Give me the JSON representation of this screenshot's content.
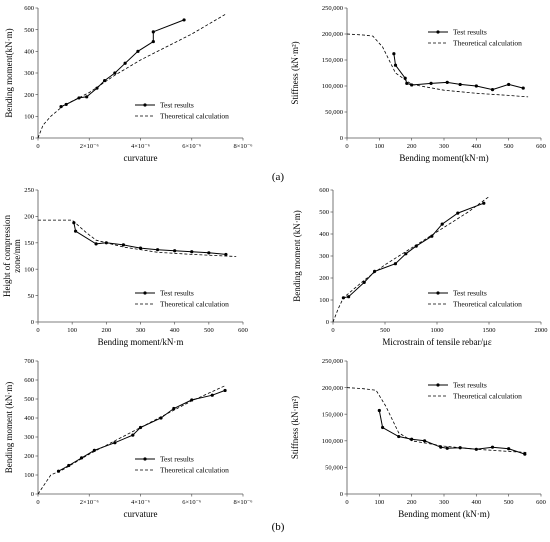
{
  "figure": {
    "caption_a": "(a)",
    "caption_b": "(b)"
  },
  "chart_data": [
    {
      "type": "line",
      "xlabel": "curvature",
      "ylabel": "Bending moment(kN·m)",
      "xlim": [
        0,
        8e-06
      ],
      "ylim": [
        0,
        600
      ],
      "xticks": [
        0,
        2e-06,
        4e-06,
        6e-06,
        8e-06
      ],
      "xtick_labels": [
        "0",
        "2×10⁻⁶",
        "4×10⁻⁶",
        "6×10⁻⁶",
        "8×10⁻⁶"
      ],
      "yticks": [
        0,
        100,
        200,
        300,
        400,
        500,
        600
      ],
      "ytick_labels": [
        "0",
        "100",
        "200",
        "300",
        "400",
        "500",
        "600"
      ],
      "grid": false,
      "legend": "lower-right",
      "series": [
        {
          "name": "Test results",
          "style": "solid-marker",
          "points": [
            [
              9e-07,
              145
            ],
            [
              1.1e-06,
              155
            ],
            [
              1.6e-06,
              185
            ],
            [
              1.9e-06,
              190
            ],
            [
              2.3e-06,
              230
            ],
            [
              2.6e-06,
              265
            ],
            [
              3e-06,
              300
            ],
            [
              3.4e-06,
              345
            ],
            [
              3.9e-06,
              400
            ],
            [
              4.5e-06,
              445
            ],
            [
              4.5e-06,
              490
            ],
            [
              5.7e-06,
              545
            ]
          ]
        },
        {
          "name": "Theoretical calculation",
          "style": "dashed",
          "points": [
            [
              0,
              0
            ],
            [
              2e-07,
              60
            ],
            [
              5e-07,
              100
            ],
            [
              1e-06,
              150
            ],
            [
              2e-06,
              210
            ],
            [
              3e-06,
              290
            ],
            [
              4e-06,
              360
            ],
            [
              5e-06,
              420
            ],
            [
              6e-06,
              480
            ],
            [
              7.3e-06,
              570
            ]
          ]
        }
      ]
    },
    {
      "type": "line",
      "xlabel": "Bending moment(kN·m)",
      "ylabel": "Stiffness (kN·m²)",
      "xlim": [
        0,
        600
      ],
      "ylim": [
        0,
        250000
      ],
      "xticks": [
        0,
        100,
        200,
        300,
        400,
        500,
        600
      ],
      "xtick_labels": [
        "0",
        "100",
        "200",
        "300",
        "400",
        "500",
        "600"
      ],
      "yticks": [
        0,
        50000,
        100000,
        150000,
        200000,
        250000
      ],
      "ytick_labels": [
        "0",
        "50,000",
        "100,000",
        "150,000",
        "200,000",
        "250,000"
      ],
      "grid": false,
      "legend": "upper-right",
      "series": [
        {
          "name": "Test results",
          "style": "solid-marker",
          "points": [
            [
              145,
              162000
            ],
            [
              150,
              140000
            ],
            [
              180,
              115000
            ],
            [
              185,
              105000
            ],
            [
              200,
              102000
            ],
            [
              260,
              105000
            ],
            [
              310,
              107000
            ],
            [
              350,
              103000
            ],
            [
              400,
              100000
            ],
            [
              450,
              93000
            ],
            [
              500,
              103000
            ],
            [
              545,
              96000
            ]
          ]
        },
        {
          "name": "Theoretical calculation",
          "style": "dashed",
          "points": [
            [
              0,
              200000
            ],
            [
              50,
              198000
            ],
            [
              80,
              196000
            ],
            [
              110,
              175000
            ],
            [
              150,
              125000
            ],
            [
              200,
              103000
            ],
            [
              300,
              92000
            ],
            [
              400,
              86000
            ],
            [
              500,
              82000
            ],
            [
              560,
              79000
            ]
          ]
        }
      ]
    },
    {
      "type": "line",
      "xlabel": "Bending moment/kN·m",
      "ylabel": "Height of compression zone/mm",
      "ylabel_lines": [
        "Height of compression",
        "zone/mm"
      ],
      "xlim": [
        0,
        600
      ],
      "ylim": [
        0,
        250
      ],
      "xticks": [
        0,
        100,
        200,
        300,
        400,
        500,
        600
      ],
      "xtick_labels": [
        "0",
        "100",
        "200",
        "300",
        "400",
        "500",
        "600"
      ],
      "yticks": [
        0,
        50,
        100,
        150,
        200,
        250
      ],
      "ytick_labels": [
        "0",
        "50",
        "100",
        "150",
        "200",
        "250"
      ],
      "grid": false,
      "legend": "lower-right",
      "series": [
        {
          "name": "Test results",
          "style": "solid-marker",
          "points": [
            [
              105,
              188
            ],
            [
              110,
              172
            ],
            [
              170,
              148
            ],
            [
              200,
              150
            ],
            [
              250,
              146
            ],
            [
              300,
              140
            ],
            [
              350,
              137
            ],
            [
              400,
              135
            ],
            [
              450,
              133
            ],
            [
              500,
              131
            ],
            [
              550,
              128
            ]
          ]
        },
        {
          "name": "Theoretical calculation",
          "style": "dashed",
          "points": [
            [
              0,
              193
            ],
            [
              100,
              193
            ],
            [
              140,
              170
            ],
            [
              170,
              155
            ],
            [
              250,
              142
            ],
            [
              350,
              132
            ],
            [
              450,
              128
            ],
            [
              580,
              124
            ]
          ]
        }
      ]
    },
    {
      "type": "line",
      "xlabel": "Microstrain of tensile rebar/με",
      "ylabel": "Bending moment (kN·m)",
      "xlim": [
        0,
        2000
      ],
      "ylim": [
        0,
        600
      ],
      "xticks": [
        0,
        500,
        1000,
        1500,
        2000
      ],
      "xtick_labels": [
        "0",
        "500",
        "1000",
        "1500",
        "2000"
      ],
      "yticks": [
        0,
        100,
        200,
        300,
        400,
        500,
        600
      ],
      "ytick_labels": [
        "0",
        "100",
        "200",
        "300",
        "400",
        "500",
        "600"
      ],
      "grid": false,
      "legend": "lower-right",
      "series": [
        {
          "name": "Test results",
          "style": "solid-marker",
          "points": [
            [
              100,
              110
            ],
            [
              150,
              115
            ],
            [
              300,
              180
            ],
            [
              400,
              230
            ],
            [
              600,
              265
            ],
            [
              700,
              310
            ],
            [
              800,
              345
            ],
            [
              950,
              390
            ],
            [
              1050,
              445
            ],
            [
              1200,
              495
            ],
            [
              1450,
              540
            ]
          ]
        },
        {
          "name": "Theoretical calculation",
          "style": "dashed",
          "points": [
            [
              0,
              0
            ],
            [
              50,
              60
            ],
            [
              100,
              110
            ],
            [
              300,
              190
            ],
            [
              500,
              260
            ],
            [
              700,
              320
            ],
            [
              900,
              380
            ],
            [
              1100,
              440
            ],
            [
              1300,
              500
            ],
            [
              1500,
              570
            ]
          ]
        }
      ]
    },
    {
      "type": "line",
      "xlabel": "curvature",
      "ylabel": "Bending moment (kN·m)",
      "xlim": [
        0,
        8e-06
      ],
      "ylim": [
        0,
        700
      ],
      "xticks": [
        0,
        2e-06,
        4e-06,
        6e-06,
        8e-06
      ],
      "xtick_labels": [
        "0",
        "2×10⁻⁶",
        "4×10⁻⁶",
        "6×10⁻⁶",
        "8×10⁻⁶"
      ],
      "yticks": [
        0,
        100,
        200,
        300,
        400,
        500,
        600,
        700
      ],
      "ytick_labels": [
        "0",
        "100",
        "200",
        "300",
        "400",
        "500",
        "600",
        "700"
      ],
      "grid": false,
      "legend": "lower-right",
      "series": [
        {
          "name": "Test results",
          "style": "solid-marker",
          "points": [
            [
              8e-07,
              120
            ],
            [
              1.2e-06,
              150
            ],
            [
              1.7e-06,
              190
            ],
            [
              2.2e-06,
              230
            ],
            [
              3e-06,
              270
            ],
            [
              3.7e-06,
              310
            ],
            [
              4e-06,
              350
            ],
            [
              4.8e-06,
              400
            ],
            [
              5.3e-06,
              450
            ],
            [
              6e-06,
              495
            ],
            [
              6.8e-06,
              520
            ],
            [
              7.3e-06,
              545
            ]
          ]
        },
        {
          "name": "Theoretical calculation",
          "style": "dashed",
          "points": [
            [
              0,
              0
            ],
            [
              5e-07,
              100
            ],
            [
              1e-06,
              130
            ],
            [
              2e-06,
              210
            ],
            [
              3e-06,
              280
            ],
            [
              4e-06,
              350
            ],
            [
              5e-06,
              420
            ],
            [
              6e-06,
              490
            ],
            [
              7.3e-06,
              570
            ]
          ]
        }
      ]
    },
    {
      "type": "line",
      "xlabel": "Bending moment (kN·m)",
      "ylabel": "Stiffness (kN·m²)",
      "xlim": [
        0,
        600
      ],
      "ylim": [
        0,
        250000
      ],
      "xticks": [
        0,
        100,
        200,
        300,
        400,
        500,
        600
      ],
      "xtick_labels": [
        "0",
        "100",
        "200",
        "300",
        "400",
        "500",
        "600"
      ],
      "yticks": [
        0,
        50000,
        100000,
        150000,
        200000,
        250000
      ],
      "ytick_labels": [
        "0",
        "50,000",
        "100,000",
        "150,000",
        "200,000",
        "250,000"
      ],
      "grid": false,
      "legend": "upper-right",
      "series": [
        {
          "name": "Test results",
          "style": "solid-marker",
          "points": [
            [
              100,
              157000
            ],
            [
              110,
              125000
            ],
            [
              160,
              108000
            ],
            [
              200,
              103000
            ],
            [
              240,
              100000
            ],
            [
              290,
              88000
            ],
            [
              310,
              86000
            ],
            [
              350,
              87000
            ],
            [
              400,
              84000
            ],
            [
              450,
              88000
            ],
            [
              500,
              85000
            ],
            [
              550,
              75000
            ]
          ]
        },
        {
          "name": "Theoretical calculation",
          "style": "dashed",
          "points": [
            [
              0,
              200000
            ],
            [
              50,
              198000
            ],
            [
              90,
              195000
            ],
            [
              120,
              165000
            ],
            [
              160,
              115000
            ],
            [
              200,
              100000
            ],
            [
              300,
              90000
            ],
            [
              400,
              84000
            ],
            [
              500,
              80000
            ],
            [
              560,
              78000
            ]
          ]
        }
      ]
    }
  ]
}
